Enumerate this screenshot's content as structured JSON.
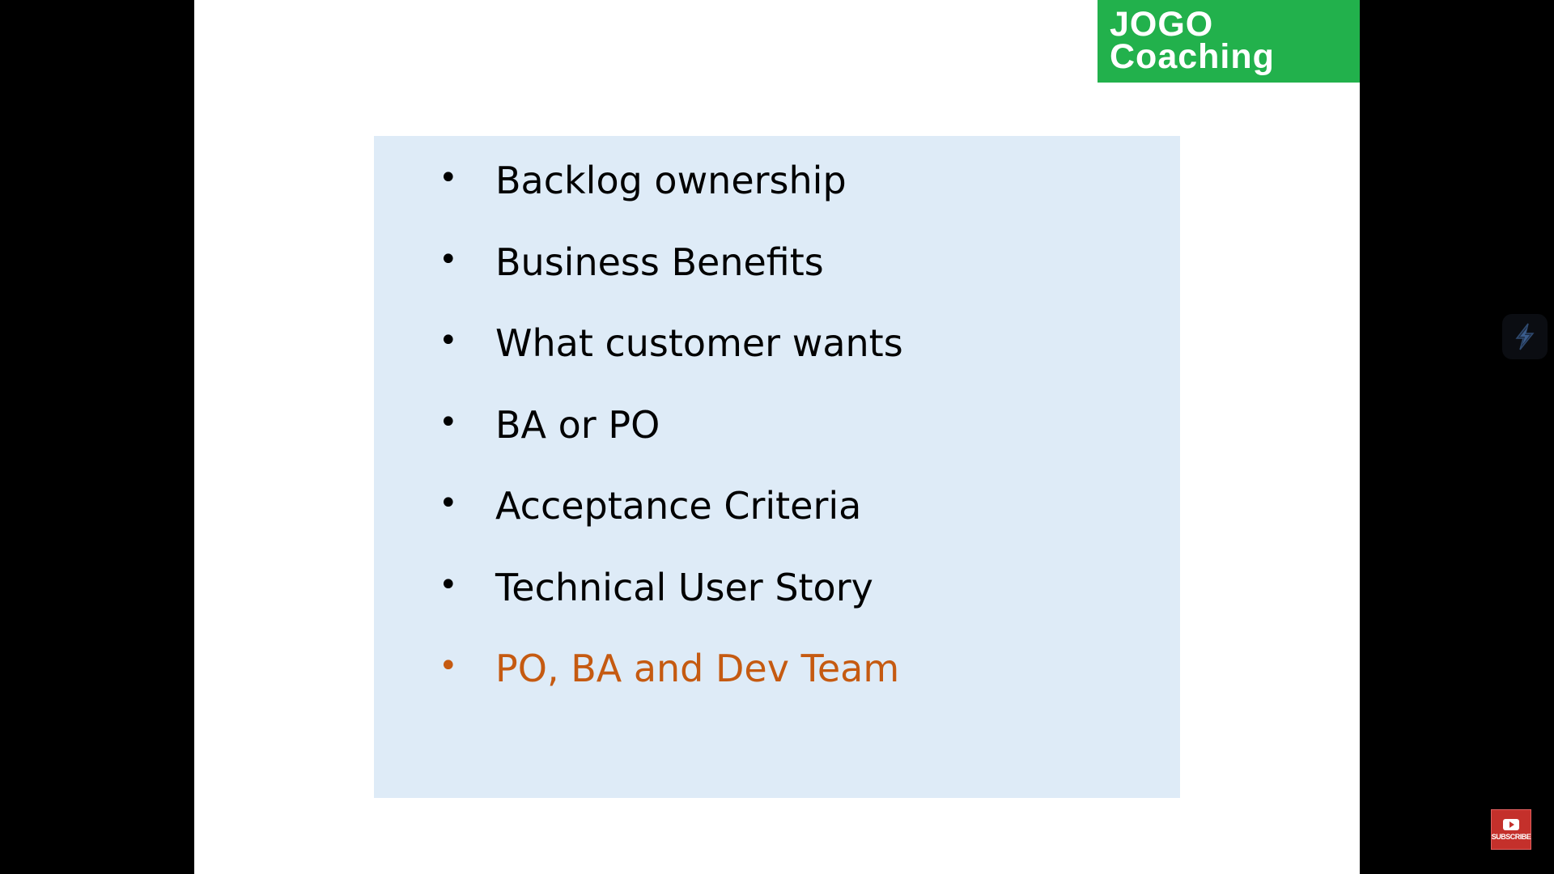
{
  "logo": {
    "line1": "JOGO",
    "line2": "Coaching"
  },
  "slide": {
    "bullets": [
      {
        "text": "Backlog ownership",
        "highlight": false
      },
      {
        "text": "Business Benefits",
        "highlight": false
      },
      {
        "text": "What customer wants",
        "highlight": false
      },
      {
        "text": "BA or PO",
        "highlight": false
      },
      {
        "text": "Acceptance Criteria",
        "highlight": false
      },
      {
        "text": "Technical User Story",
        "highlight": false
      },
      {
        "text": "PO, BA and Dev Team",
        "highlight": true
      }
    ],
    "bullet_glyph": "•"
  },
  "colors": {
    "logo_bg": "#22b14c",
    "content_bg": "#deebf7",
    "highlight_text": "#c55a11",
    "subscribe_bg": "#c4302b"
  },
  "overlay": {
    "bolt_icon": "lightning-bolt-icon",
    "subscribe_label": "SUBSCRIBE"
  }
}
